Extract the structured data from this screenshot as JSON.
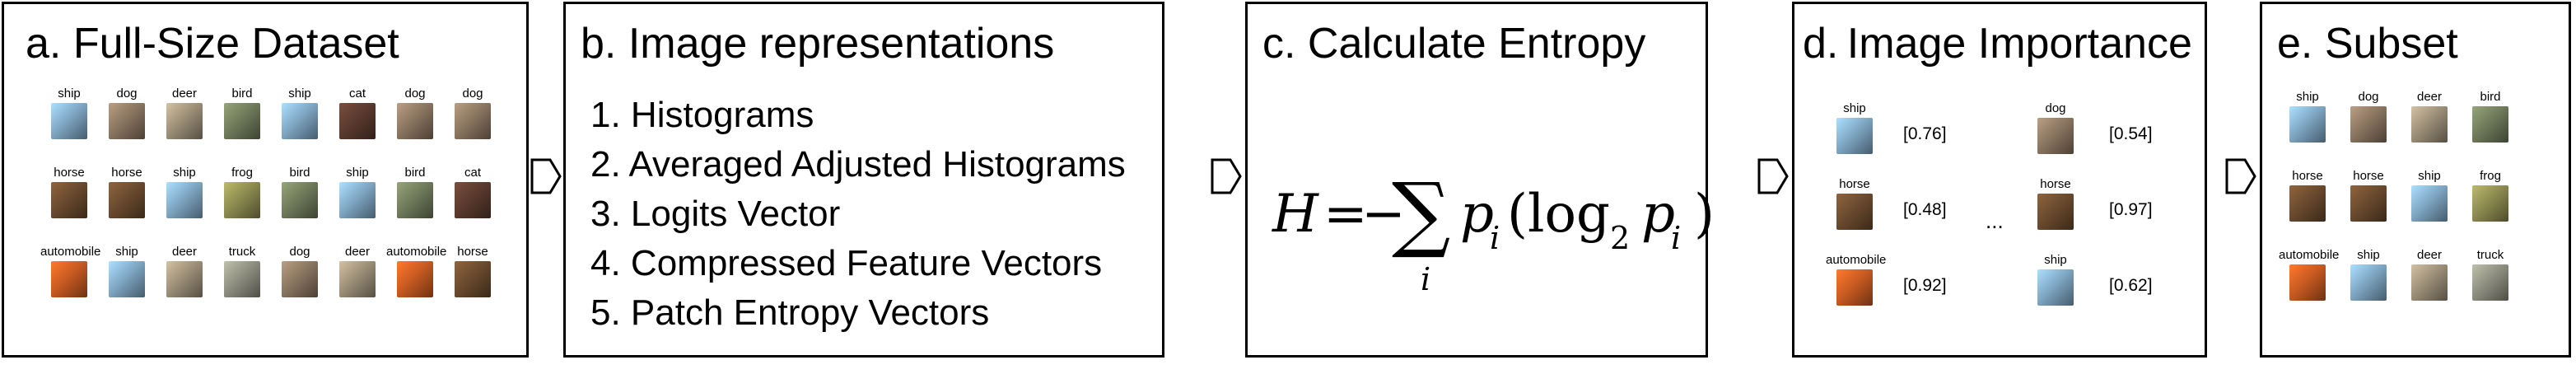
{
  "panels": {
    "a": {
      "title": "a.  Full-Size Dataset",
      "grid": [
        [
          "ship",
          "dog",
          "deer",
          "bird",
          "ship",
          "cat",
          "dog",
          "dog"
        ],
        [
          "horse",
          "horse",
          "ship",
          "frog",
          "bird",
          "ship",
          "bird",
          "cat"
        ],
        [
          "automobile",
          "ship",
          "deer",
          "truck",
          "dog",
          "deer",
          "automobile",
          "horse"
        ]
      ]
    },
    "b": {
      "title": "b.      Image representations",
      "items": [
        "1. Histograms",
        "2. Averaged Adjusted Histograms",
        "3. Logits Vector",
        "4. Compressed Feature Vectors",
        "5. Patch Entropy Vectors"
      ]
    },
    "c": {
      "title": "c.  Calculate Entropy",
      "formula": {
        "H": "H",
        "eq": "=",
        "minus": "−",
        "sum": "∑",
        "p": "p",
        "i": "i",
        "open": "(log",
        "two": "2",
        "close": ")"
      }
    },
    "d": {
      "title": "d. Image Importance",
      "left": [
        {
          "label": "ship",
          "score": "[0.76]"
        },
        {
          "label": "horse",
          "score": "[0.48]"
        },
        {
          "label": "automobile",
          "score": "[0.92]"
        }
      ],
      "right": [
        {
          "label": "dog",
          "score": "[0.54]"
        },
        {
          "label": "horse",
          "score": "[0.97]"
        },
        {
          "label": "ship",
          "score": "[0.62]"
        }
      ],
      "ellipsis": "..."
    },
    "e": {
      "title": "e.  Subset",
      "grid": [
        [
          "ship",
          "dog",
          "deer",
          "bird"
        ],
        [
          "horse",
          "horse",
          "ship",
          "frog"
        ],
        [
          "automobile",
          "ship",
          "deer",
          "truck"
        ]
      ]
    }
  },
  "colors": {
    "ship": "#7fa7c4",
    "dog": "#8a7560",
    "deer": "#9c8f78",
    "bird": "#6f7a5a",
    "cat": "#5a3a2e",
    "horse": "#6a4a2e",
    "frog": "#8c8a50",
    "automobile": "#c85a22",
    "truck": "#8e8e80"
  }
}
